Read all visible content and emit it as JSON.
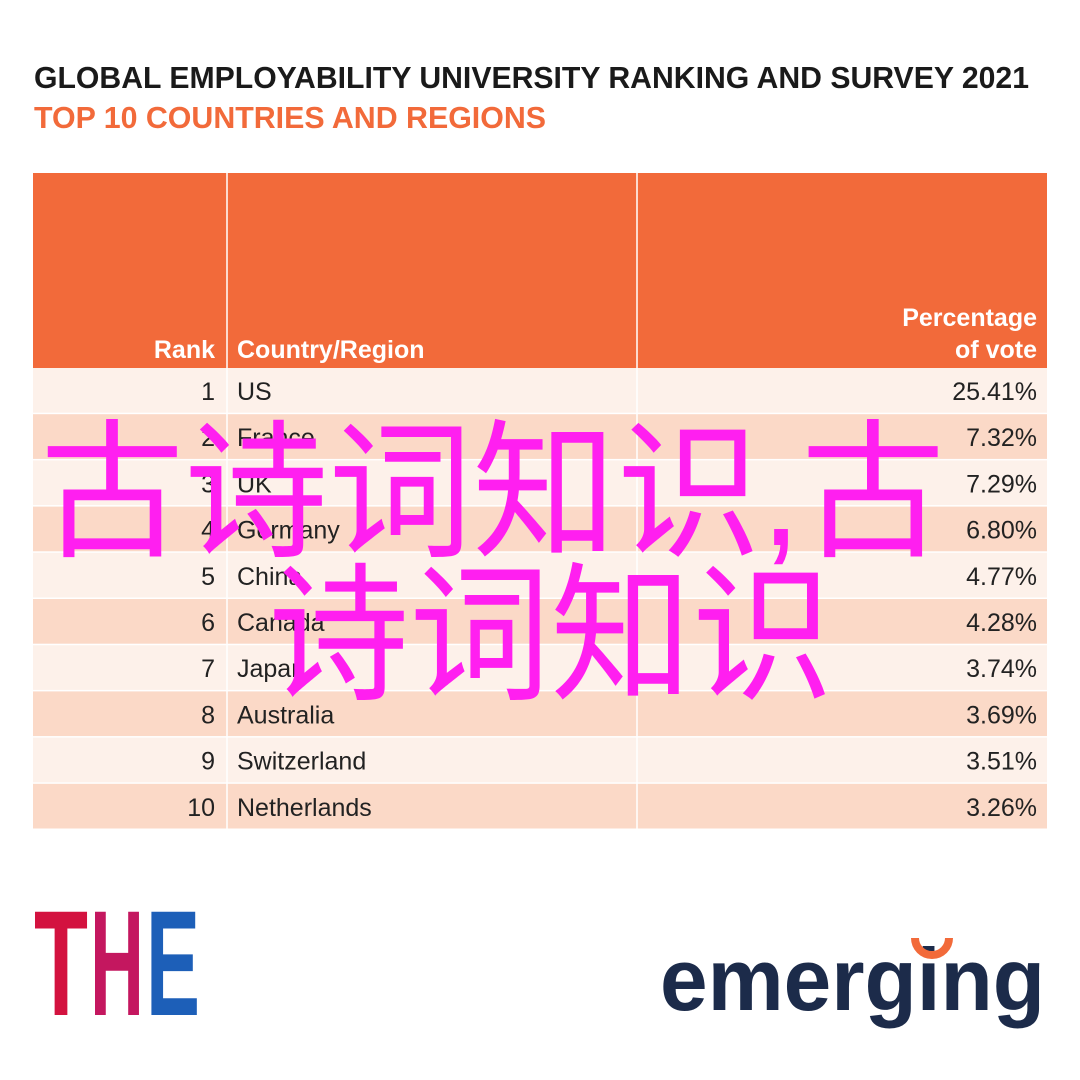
{
  "header": {
    "title": "GLOBAL EMPLOYABILITY UNIVERSITY RANKING AND SURVEY 2021",
    "subtitle": "TOP 10 COUNTRIES AND REGIONS"
  },
  "table": {
    "columns": [
      "Rank",
      "Country/Region",
      [
        "Percentage",
        "of vote"
      ]
    ],
    "rows": [
      [
        "1",
        "US",
        "25.41%"
      ],
      [
        "2",
        "France",
        "7.32%"
      ],
      [
        "3",
        "UK",
        "7.29%"
      ],
      [
        "4",
        "Germany",
        "6.80%"
      ],
      [
        "5",
        "China",
        "4.77%"
      ],
      [
        "6",
        "Canada",
        "4.28%"
      ],
      [
        "7",
        "Japan",
        "3.74%"
      ],
      [
        "8",
        "Australia",
        "3.69%"
      ],
      [
        "9",
        "Switzerland",
        "3.51%"
      ],
      [
        "10",
        "Netherlands",
        "3.26%"
      ]
    ]
  },
  "watermark": {
    "lines": [
      "古诗词知识,古",
      "诗词知识"
    ]
  },
  "logos": {
    "the": [
      "T",
      "H",
      "E"
    ],
    "emerging": "emerging"
  }
}
